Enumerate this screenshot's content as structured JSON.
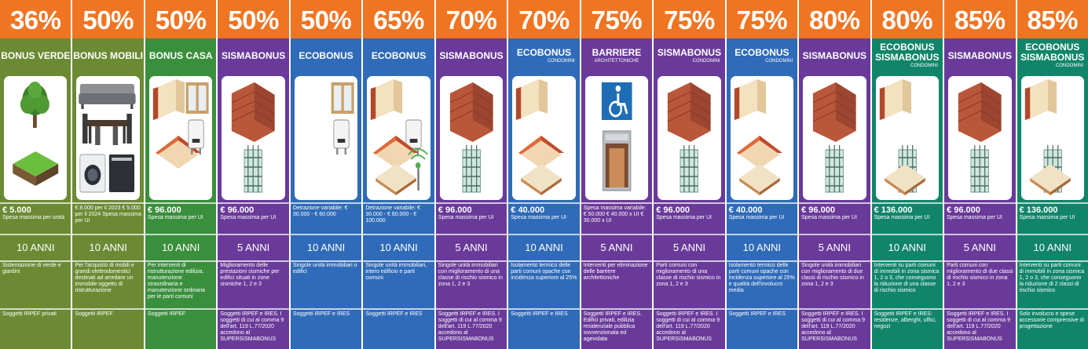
{
  "colors": {
    "orange": "#ef7523",
    "green": "#3a8f3c",
    "olive": "#6b8a33",
    "purple": "#6a3a9a",
    "blue": "#2f6bb8",
    "teal": "#11856a"
  },
  "columns": [
    {
      "percent": "36%",
      "title": "BONUS VERDE",
      "subtitle": "",
      "theme": "olive",
      "icons": [
        "tree-icon",
        "lawn-icon"
      ],
      "amount": "€ 5.000",
      "amount_note": "Spesa massima per unità",
      "years": "10 ANNI",
      "description": "Sistemazione di verde e giardini",
      "beneficiaries": "Soggetti IRPEF privati"
    },
    {
      "percent": "50%",
      "title": "BONUS MOBILI",
      "subtitle": "",
      "theme": "olive",
      "icons": [
        "sofa-icon",
        "dining-table-icon",
        "washing-machine-icon",
        "dishwasher-icon"
      ],
      "amount": "",
      "amount_note": "€ 8.000 per il 2023 € 5.000 per il 2024 Spesa massima per UI",
      "years": "10 ANNI",
      "description": "Per l'acquisto di mobili e grandi elettrodomestici destinati ad arredare un immobile oggetto di ristrutturazione",
      "beneficiaries": "Soggetti IRPEF"
    },
    {
      "percent": "50%",
      "title": "BONUS CASA",
      "subtitle": "",
      "theme": "green",
      "icons": [
        "insulation-wall-icon",
        "window-icon",
        "roof-icon",
        "boiler-icon"
      ],
      "amount": "€ 96.000",
      "amount_note": "Spesa massima per UI",
      "years": "10 ANNI",
      "description": "Per interventi di ristrutturazione edilizia, manutenzione straordinaria e manutenzione ordinaria per le parti comuni",
      "beneficiaries": "Soggetti IRPEF"
    },
    {
      "percent": "50%",
      "title": "SISMABONUS",
      "subtitle": "",
      "theme": "purple",
      "icons": [
        "brick-wall-icon",
        "rebar-column-icon"
      ],
      "amount": "€ 96.000",
      "amount_note": "Spesa massima per UI",
      "years": "5 ANNI",
      "description": "Miglioramento delle prestazioni sismiche per edifici situati in zone sismiche 1, 2 e 3",
      "beneficiaries": "Soggetti IRPEF e IRES. I soggetti di cui al comma 9 dell'art. 119 L.77/2020 accedono al SUPERSISMABONUS"
    },
    {
      "percent": "50%",
      "title": "ECOBONUS",
      "subtitle": "",
      "theme": "blue",
      "icons": [
        "window-icon",
        "boiler-icon"
      ],
      "amount": "",
      "amount_note": "Detrazione variabile: € 30.000 - € 60.000",
      "years": "10 ANNI",
      "description": "Singole unità immobiliari o edifici",
      "beneficiaries": "Soggetti IRPEF e IRES"
    },
    {
      "percent": "65%",
      "title": "ECOBONUS",
      "subtitle": "",
      "theme": "blue",
      "icons": [
        "insulation-wall-icon",
        "boiler-icon",
        "roof-icon",
        "ceiling-icon",
        "sensor-icon"
      ],
      "amount": "",
      "amount_note": "Detrazione variabile: € 30.000 - € 60.000 - € 100.000",
      "years": "10 ANNI",
      "description": "Singole unità immobiliari, intero edificio e parti comuni",
      "beneficiaries": "Soggetti IRPEF e IRES"
    },
    {
      "percent": "70%",
      "title": "SISMABONUS",
      "subtitle": "",
      "theme": "purple",
      "icons": [
        "brick-wall-icon",
        "rebar-column-icon"
      ],
      "amount": "€ 96.000",
      "amount_note": "Spesa massima per UI",
      "years": "5 ANNI",
      "description": "Singole unità immobiliari con miglioramento di una classe di rischio sismico in zona 1, 2 e 3",
      "beneficiaries": "Soggetti IRPEF e IRES. I soggetti di cui al comma 9 dell'art. 119 L.77/2020 accedono al SUPERSISMABONUS"
    },
    {
      "percent": "70%",
      "title": "ECOBONUS",
      "subtitle": "CONDOMINI",
      "theme": "blue",
      "icons": [
        "insulation-wall-icon",
        "roof-icon",
        "ceiling-icon"
      ],
      "amount": "€ 40.000",
      "amount_note": "Spesa massima per UI",
      "years": "10 ANNI",
      "description": "Isolamento termico delle parti comuni opache con incidenza superiore al 25%",
      "beneficiaries": "Soggetti IRPEF e IRES"
    },
    {
      "percent": "75%",
      "title": "BARRIERE",
      "subtitle": "ARCHITETTONICHE",
      "theme": "purple",
      "icons": [
        "wheelchair-icon",
        "elevator-icon"
      ],
      "amount": "",
      "amount_note": "Spesa massima variabile: € 50.000 € 40.000 x UI € 30.000 x UI",
      "years": "5 ANNI",
      "description": "Interventi per eliminazione delle barriere architettoniche",
      "beneficiaries": "Soggetti IRPEF e IRES. Edifici privati, edilizia residenziale pubblica sovvenzionata ed agevolata"
    },
    {
      "percent": "75%",
      "title": "SISMABONUS",
      "subtitle": "CONDOMINI",
      "theme": "purple",
      "icons": [
        "brick-wall-icon",
        "rebar-column-icon"
      ],
      "amount": "€ 96.000",
      "amount_note": "Spesa massima per UI",
      "years": "5 ANNI",
      "description": "Parti comuni con miglioramento di una classe di rischio sismico in zona 1, 2 e 3",
      "beneficiaries": "Soggetti IRPEF e IRES. I soggetti di cui al comma 9 dell'art. 119 L.77/2020 accedono al SUPERSISMABONUS"
    },
    {
      "percent": "75%",
      "title": "ECOBONUS",
      "subtitle": "CONDOMINI",
      "theme": "blue",
      "icons": [
        "insulation-wall-icon",
        "roof-icon",
        "ceiling-icon"
      ],
      "amount": "€ 40.000",
      "amount_note": "Spesa massima per UI",
      "years": "10 ANNI",
      "description": "Isolamento termico delle parti comuni opache con incidenza superiore al 25% e qualità dell'involucro media",
      "beneficiaries": "Soggetti IRPEF e IRES"
    },
    {
      "percent": "80%",
      "title": "SISMABONUS",
      "subtitle": "",
      "theme": "purple",
      "icons": [
        "brick-wall-icon",
        "rebar-column-icon"
      ],
      "amount": "€ 96.000",
      "amount_note": "Spesa massima per UI",
      "years": "5 ANNI",
      "description": "Singole unità immobiliari con miglioramento di due classi di rischio sismico in zona 1, 2 e 3",
      "beneficiaries": "Soggetti IRPEF e IRES. I soggetti di cui al comma 9 dell'art. 119 L.77/2020 accedono al SUPERSISMABONUS"
    },
    {
      "percent": "80%",
      "title": "ECOBONUS SISMABONUS",
      "subtitle": "CONDOMINI",
      "theme": "teal",
      "icons": [
        "insulation-wall-icon",
        "rebar-column-icon",
        "ceiling-icon"
      ],
      "amount": "€ 136.000",
      "amount_note": "Spesa massima per UI",
      "years": "10 ANNI",
      "description": "Interventi su parti comuni di immobili in zona sismica 1, 2 o 3, che conseguono la riduzione di una classe di rischio sismico",
      "beneficiaries": "Soggetti IRPEF e IRES: residenze, alberghi, uffici, negozi"
    },
    {
      "percent": "85%",
      "title": "SISMABONUS",
      "subtitle": "",
      "theme": "purple",
      "icons": [
        "brick-wall-icon",
        "rebar-column-icon"
      ],
      "amount": "€ 96.000",
      "amount_note": "Spesa massima per UI",
      "years": "5 ANNI",
      "description": "Parti comuni con miglioramento di due classi di rischio sismico in zona 1, 2 e 3",
      "beneficiaries": "Soggetti IRPEF e IRES. I soggetti di cui al comma 9 dell'art. 119 L.77/2020 accedono al SUPERSISMABONUS"
    },
    {
      "percent": "85%",
      "title": "ECOBONUS SISMABONUS",
      "subtitle": "CONDOMINI",
      "theme": "teal",
      "icons": [
        "insulation-wall-icon",
        "rebar-column-icon",
        "ceiling-icon"
      ],
      "amount": "€ 136.000",
      "amount_note": "Spesa massima per UI",
      "years": "10 ANNI",
      "description": "Interventi su parti comuni di immobili in zona sismica 1, 2 o 3, che conseguono la riduzione di 2 classi di rischio sismico",
      "beneficiaries": "Solo involucro e spese accessorie comprensive di progettazione"
    }
  ]
}
